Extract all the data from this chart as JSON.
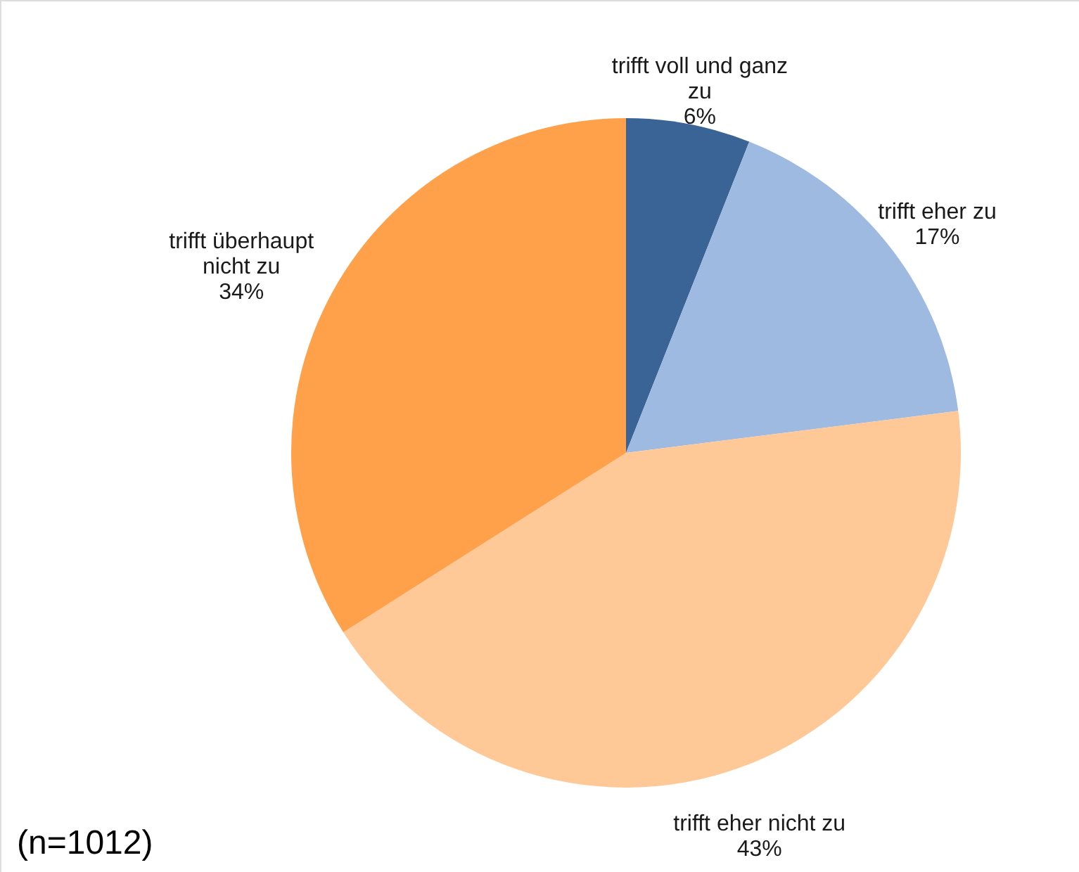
{
  "chart_data": {
    "type": "pie",
    "categories": [
      "trifft voll und ganz zu",
      "trifft eher zu",
      "trifft eher nicht zu",
      "trifft überhaupt nicht zu"
    ],
    "values": [
      6,
      17,
      43,
      34
    ],
    "value_labels": [
      "6%",
      "17%",
      "43%",
      "34%"
    ],
    "colors": [
      "#3a6496",
      "#9fbae0",
      "#ffc896",
      "#ffa04a"
    ],
    "annotations": [
      "(n=1012)"
    ]
  }
}
